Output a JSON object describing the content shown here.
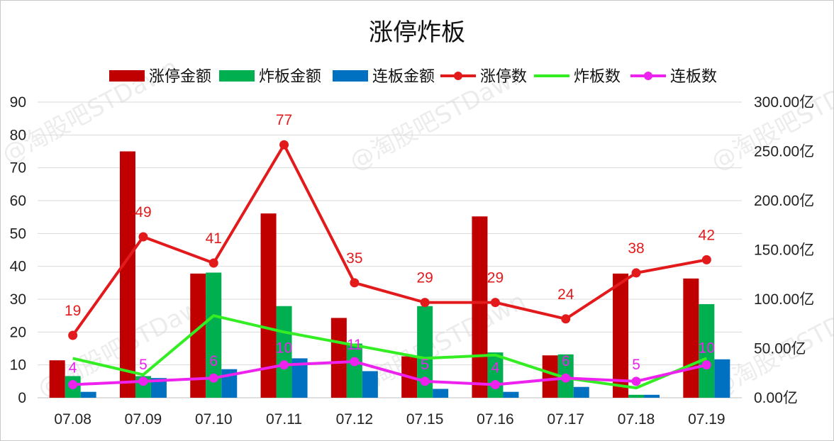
{
  "chart_data": {
    "type": "bar",
    "title": "涨停炸板",
    "categories": [
      "07.08",
      "07.09",
      "07.10",
      "07.11",
      "07.12",
      "07.15",
      "07.16",
      "07.17",
      "07.18",
      "07.19"
    ],
    "legend_position": "top",
    "grid": true,
    "y_left": {
      "range": [
        0,
        90
      ],
      "ticks": [
        "0",
        "10",
        "20",
        "30",
        "40",
        "50",
        "60",
        "70",
        "80",
        "90"
      ]
    },
    "y_right": {
      "range": [
        0,
        300
      ],
      "ticks": [
        "0.00亿",
        "50.00亿",
        "100.00亿",
        "150.00亿",
        "200.00亿",
        "250.00亿",
        "300.00亿"
      ]
    },
    "bar_series": [
      {
        "name": "涨停金额",
        "color": "#c00000",
        "axis": "right",
        "values": [
          38,
          250,
          126,
          187,
          81,
          42,
          184,
          43,
          126,
          121
        ]
      },
      {
        "name": "炸板金额",
        "color": "#00b050",
        "axis": "right",
        "values": [
          22,
          22,
          127,
          93,
          55,
          93,
          46,
          44,
          3,
          95
        ]
      },
      {
        "name": "连板金额",
        "color": "#0070c0",
        "axis": "right",
        "values": [
          6,
          20,
          29,
          40,
          27,
          9,
          6,
          11,
          3,
          39
        ]
      }
    ],
    "line_series": [
      {
        "name": "涨停数",
        "color": "#e31a1c",
        "axis": "left",
        "markers": true,
        "values": [
          19,
          49,
          41,
          77,
          35,
          29,
          29,
          24,
          38,
          42
        ],
        "labels": [
          "19",
          "49",
          "41",
          "77",
          "35",
          "29",
          "29",
          "24",
          "38",
          "42"
        ]
      },
      {
        "name": "炸板数",
        "color": "#33ee22",
        "axis": "left",
        "markers": false,
        "values": [
          12,
          7,
          25,
          20,
          16,
          12,
          13,
          6,
          3,
          12
        ]
      },
      {
        "name": "连板数",
        "color": "#ee22ee",
        "axis": "left",
        "markers": true,
        "values": [
          4,
          5,
          6,
          10,
          11,
          5,
          4,
          6,
          5,
          10
        ],
        "labels": [
          "4",
          "5",
          "6",
          "10",
          "11",
          "5",
          "4",
          "6",
          "5",
          "10"
        ]
      }
    ],
    "watermark": "@淘股吧STDawn"
  }
}
